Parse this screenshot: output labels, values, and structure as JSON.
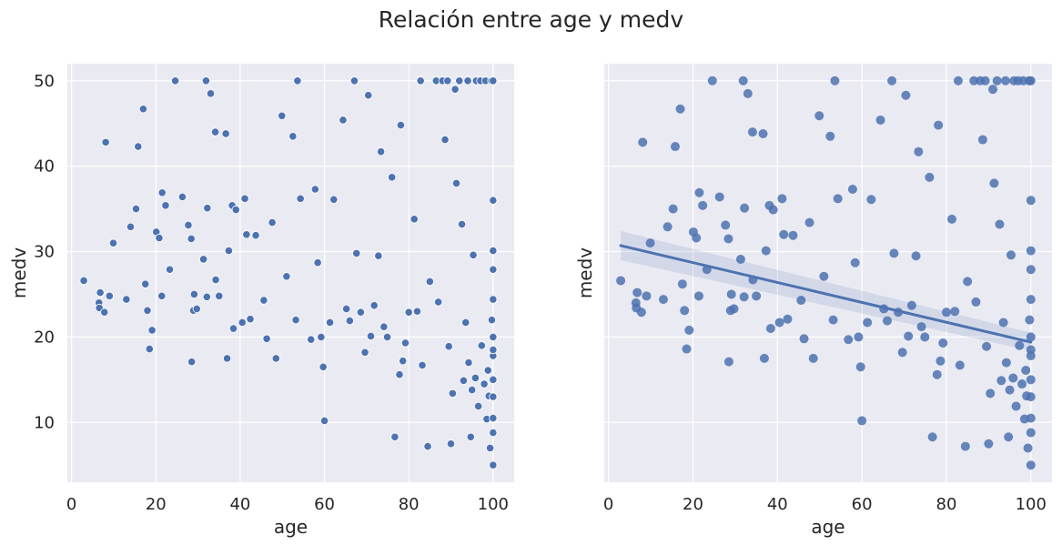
{
  "figure": {
    "title": "Relación entre age y medv"
  },
  "style": {
    "axes_bg": "#eaeaf2",
    "grid_color": "#ffffff",
    "point_color": "#4c72b0",
    "point_edge": "#ffffff",
    "line_color": "#4c72b0",
    "text_color": "#262626"
  },
  "chart_data": [
    {
      "type": "scatter",
      "title": "",
      "xlabel": "age",
      "ylabel": "medv",
      "xlim": [
        -1,
        105
      ],
      "ylim": [
        3,
        52
      ],
      "xticks": [
        0,
        20,
        40,
        60,
        80,
        100
      ],
      "yticks": [
        10,
        20,
        30,
        40,
        50
      ],
      "show_yticklabels": true,
      "grid": true,
      "points": [
        [
          2.9,
          26.6
        ],
        [
          6.5,
          24.0
        ],
        [
          6.6,
          23.4
        ],
        [
          6.8,
          25.2
        ],
        [
          7.8,
          22.9
        ],
        [
          8.1,
          42.8
        ],
        [
          9.0,
          24.8
        ],
        [
          9.9,
          31.0
        ],
        [
          13.0,
          24.4
        ],
        [
          14.0,
          32.9
        ],
        [
          15.3,
          35.0
        ],
        [
          15.8,
          42.3
        ],
        [
          17.0,
          46.7
        ],
        [
          17.5,
          26.2
        ],
        [
          18.0,
          23.1
        ],
        [
          18.5,
          18.6
        ],
        [
          19.1,
          20.8
        ],
        [
          20.1,
          32.3
        ],
        [
          20.8,
          31.6
        ],
        [
          21.4,
          24.8
        ],
        [
          21.5,
          36.9
        ],
        [
          22.3,
          35.4
        ],
        [
          23.3,
          27.9
        ],
        [
          24.6,
          50.0
        ],
        [
          26.3,
          36.4
        ],
        [
          27.7,
          33.1
        ],
        [
          28.4,
          31.5
        ],
        [
          28.5,
          17.1
        ],
        [
          28.9,
          23.1
        ],
        [
          29.1,
          25.0
        ],
        [
          29.7,
          23.3
        ],
        [
          31.3,
          29.1
        ],
        [
          31.9,
          50.0
        ],
        [
          32.1,
          24.7
        ],
        [
          32.2,
          35.1
        ],
        [
          33.0,
          48.5
        ],
        [
          34.1,
          44.0
        ],
        [
          34.2,
          26.7
        ],
        [
          35.0,
          24.8
        ],
        [
          36.6,
          43.8
        ],
        [
          36.9,
          17.5
        ],
        [
          37.3,
          30.1
        ],
        [
          38.1,
          35.4
        ],
        [
          38.4,
          21.0
        ],
        [
          39.0,
          34.9
        ],
        [
          40.5,
          21.7
        ],
        [
          41.1,
          36.2
        ],
        [
          41.5,
          32.0
        ],
        [
          42.4,
          22.1
        ],
        [
          43.7,
          31.9
        ],
        [
          45.6,
          24.3
        ],
        [
          46.3,
          19.8
        ],
        [
          47.6,
          33.4
        ],
        [
          48.5,
          17.5
        ],
        [
          49.9,
          45.9
        ],
        [
          51.0,
          27.1
        ],
        [
          52.5,
          43.5
        ],
        [
          53.2,
          22.0
        ],
        [
          53.6,
          50.0
        ],
        [
          54.3,
          36.2
        ],
        [
          56.8,
          19.7
        ],
        [
          57.8,
          37.3
        ],
        [
          58.4,
          28.7
        ],
        [
          59.2,
          20.0
        ],
        [
          59.7,
          16.5
        ],
        [
          60.0,
          10.2
        ],
        [
          61.3,
          21.7
        ],
        [
          62.2,
          36.1
        ],
        [
          64.4,
          45.4
        ],
        [
          65.2,
          23.3
        ],
        [
          66.0,
          21.9
        ],
        [
          67.1,
          50.0
        ],
        [
          67.6,
          29.8
        ],
        [
          68.6,
          22.9
        ],
        [
          69.6,
          18.2
        ],
        [
          70.4,
          48.3
        ],
        [
          71.0,
          20.1
        ],
        [
          71.8,
          23.7
        ],
        [
          72.8,
          29.5
        ],
        [
          73.4,
          41.7
        ],
        [
          74.1,
          21.2
        ],
        [
          74.9,
          20.0
        ],
        [
          76.0,
          38.7
        ],
        [
          76.7,
          8.3
        ],
        [
          77.8,
          15.6
        ],
        [
          78.1,
          44.8
        ],
        [
          78.6,
          17.2
        ],
        [
          79.2,
          19.3
        ],
        [
          80.0,
          22.9
        ],
        [
          81.3,
          33.8
        ],
        [
          82.0,
          23.0
        ],
        [
          82.8,
          50.0
        ],
        [
          83.2,
          16.7
        ],
        [
          84.5,
          7.2
        ],
        [
          85.0,
          26.5
        ],
        [
          86.5,
          50.0
        ],
        [
          87.0,
          24.1
        ],
        [
          88.0,
          50.0
        ],
        [
          88.6,
          43.1
        ],
        [
          89.2,
          50.0
        ],
        [
          89.5,
          18.9
        ],
        [
          90.0,
          7.5
        ],
        [
          90.4,
          13.4
        ],
        [
          91.0,
          49.0
        ],
        [
          91.3,
          38.0
        ],
        [
          92.0,
          50.0
        ],
        [
          92.6,
          33.2
        ],
        [
          93.0,
          14.9
        ],
        [
          93.5,
          21.7
        ],
        [
          94.0,
          50.0
        ],
        [
          94.2,
          17.0
        ],
        [
          94.7,
          8.3
        ],
        [
          95.0,
          13.8
        ],
        [
          95.3,
          29.6
        ],
        [
          95.8,
          15.2
        ],
        [
          96.0,
          50.0
        ],
        [
          96.5,
          11.9
        ],
        [
          97.0,
          50.0
        ],
        [
          97.3,
          19.0
        ],
        [
          97.9,
          14.5
        ],
        [
          98.2,
          50.0
        ],
        [
          98.5,
          10.4
        ],
        [
          98.8,
          16.1
        ],
        [
          99.0,
          13.1
        ],
        [
          99.3,
          7.0
        ],
        [
          99.6,
          50.0
        ],
        [
          99.7,
          22.0
        ],
        [
          100.0,
          50.0
        ],
        [
          100.0,
          5.0
        ],
        [
          100.0,
          36.0
        ],
        [
          100.0,
          15.0
        ],
        [
          100.0,
          20.0
        ],
        [
          100.0,
          27.9
        ],
        [
          100.0,
          10.5
        ],
        [
          100.0,
          17.8
        ],
        [
          100.0,
          13.0
        ],
        [
          100.0,
          24.4
        ],
        [
          100.0,
          8.8
        ],
        [
          100.0,
          30.1
        ],
        [
          100.0,
          18.5
        ]
      ]
    },
    {
      "type": "scatter",
      "title": "",
      "xlabel": "age",
      "ylabel": "medv",
      "xlim": [
        -1,
        105
      ],
      "ylim": [
        3,
        52
      ],
      "xticks": [
        0,
        20,
        40,
        60,
        80,
        100
      ],
      "yticks": [
        10,
        20,
        30,
        40,
        50
      ],
      "show_yticklabels": false,
      "grid": true,
      "regression": {
        "x": [
          2.9,
          100
        ],
        "y": [
          30.7,
          19.4
        ],
        "ci_low": [
          29.0,
          18.4
        ],
        "ci_high": [
          32.4,
          20.5
        ]
      },
      "points": [
        [
          2.9,
          26.6
        ],
        [
          6.5,
          24.0
        ],
        [
          6.6,
          23.4
        ],
        [
          6.8,
          25.2
        ],
        [
          7.8,
          22.9
        ],
        [
          8.1,
          42.8
        ],
        [
          9.0,
          24.8
        ],
        [
          9.9,
          31.0
        ],
        [
          13.0,
          24.4
        ],
        [
          14.0,
          32.9
        ],
        [
          15.3,
          35.0
        ],
        [
          15.8,
          42.3
        ],
        [
          17.0,
          46.7
        ],
        [
          17.5,
          26.2
        ],
        [
          18.0,
          23.1
        ],
        [
          18.5,
          18.6
        ],
        [
          19.1,
          20.8
        ],
        [
          20.1,
          32.3
        ],
        [
          20.8,
          31.6
        ],
        [
          21.4,
          24.8
        ],
        [
          21.5,
          36.9
        ],
        [
          22.3,
          35.4
        ],
        [
          23.3,
          27.9
        ],
        [
          24.6,
          50.0
        ],
        [
          26.3,
          36.4
        ],
        [
          27.7,
          33.1
        ],
        [
          28.4,
          31.5
        ],
        [
          28.5,
          17.1
        ],
        [
          28.9,
          23.1
        ],
        [
          29.1,
          25.0
        ],
        [
          29.7,
          23.3
        ],
        [
          31.3,
          29.1
        ],
        [
          31.9,
          50.0
        ],
        [
          32.1,
          24.7
        ],
        [
          32.2,
          35.1
        ],
        [
          33.0,
          48.5
        ],
        [
          34.1,
          44.0
        ],
        [
          34.2,
          26.7
        ],
        [
          35.0,
          24.8
        ],
        [
          36.6,
          43.8
        ],
        [
          36.9,
          17.5
        ],
        [
          37.3,
          30.1
        ],
        [
          38.1,
          35.4
        ],
        [
          38.4,
          21.0
        ],
        [
          39.0,
          34.9
        ],
        [
          40.5,
          21.7
        ],
        [
          41.1,
          36.2
        ],
        [
          41.5,
          32.0
        ],
        [
          42.4,
          22.1
        ],
        [
          43.7,
          31.9
        ],
        [
          45.6,
          24.3
        ],
        [
          46.3,
          19.8
        ],
        [
          47.6,
          33.4
        ],
        [
          48.5,
          17.5
        ],
        [
          49.9,
          45.9
        ],
        [
          51.0,
          27.1
        ],
        [
          52.5,
          43.5
        ],
        [
          53.2,
          22.0
        ],
        [
          53.6,
          50.0
        ],
        [
          54.3,
          36.2
        ],
        [
          56.8,
          19.7
        ],
        [
          57.8,
          37.3
        ],
        [
          58.4,
          28.7
        ],
        [
          59.2,
          20.0
        ],
        [
          59.7,
          16.5
        ],
        [
          60.0,
          10.2
        ],
        [
          61.3,
          21.7
        ],
        [
          62.2,
          36.1
        ],
        [
          64.4,
          45.4
        ],
        [
          65.2,
          23.3
        ],
        [
          66.0,
          21.9
        ],
        [
          67.1,
          50.0
        ],
        [
          67.6,
          29.8
        ],
        [
          68.6,
          22.9
        ],
        [
          69.6,
          18.2
        ],
        [
          70.4,
          48.3
        ],
        [
          71.0,
          20.1
        ],
        [
          71.8,
          23.7
        ],
        [
          72.8,
          29.5
        ],
        [
          73.4,
          41.7
        ],
        [
          74.1,
          21.2
        ],
        [
          74.9,
          20.0
        ],
        [
          76.0,
          38.7
        ],
        [
          76.7,
          8.3
        ],
        [
          77.8,
          15.6
        ],
        [
          78.1,
          44.8
        ],
        [
          78.6,
          17.2
        ],
        [
          79.2,
          19.3
        ],
        [
          80.0,
          22.9
        ],
        [
          81.3,
          33.8
        ],
        [
          82.0,
          23.0
        ],
        [
          82.8,
          50.0
        ],
        [
          83.2,
          16.7
        ],
        [
          84.5,
          7.2
        ],
        [
          85.0,
          26.5
        ],
        [
          86.5,
          50.0
        ],
        [
          87.0,
          24.1
        ],
        [
          88.0,
          50.0
        ],
        [
          88.6,
          43.1
        ],
        [
          89.2,
          50.0
        ],
        [
          89.5,
          18.9
        ],
        [
          90.0,
          7.5
        ],
        [
          90.4,
          13.4
        ],
        [
          91.0,
          49.0
        ],
        [
          91.3,
          38.0
        ],
        [
          92.0,
          50.0
        ],
        [
          92.6,
          33.2
        ],
        [
          93.0,
          14.9
        ],
        [
          93.5,
          21.7
        ],
        [
          94.0,
          50.0
        ],
        [
          94.2,
          17.0
        ],
        [
          94.7,
          8.3
        ],
        [
          95.0,
          13.8
        ],
        [
          95.3,
          29.6
        ],
        [
          95.8,
          15.2
        ],
        [
          96.0,
          50.0
        ],
        [
          96.5,
          11.9
        ],
        [
          97.0,
          50.0
        ],
        [
          97.3,
          19.0
        ],
        [
          97.9,
          14.5
        ],
        [
          98.2,
          50.0
        ],
        [
          98.5,
          10.4
        ],
        [
          98.8,
          16.1
        ],
        [
          99.0,
          13.1
        ],
        [
          99.3,
          7.0
        ],
        [
          99.6,
          50.0
        ],
        [
          99.7,
          22.0
        ],
        [
          100.0,
          50.0
        ],
        [
          100.0,
          5.0
        ],
        [
          100.0,
          36.0
        ],
        [
          100.0,
          15.0
        ],
        [
          100.0,
          20.0
        ],
        [
          100.0,
          27.9
        ],
        [
          100.0,
          10.5
        ],
        [
          100.0,
          17.8
        ],
        [
          100.0,
          13.0
        ],
        [
          100.0,
          24.4
        ],
        [
          100.0,
          8.8
        ],
        [
          100.0,
          30.1
        ],
        [
          100.0,
          18.5
        ]
      ]
    }
  ]
}
